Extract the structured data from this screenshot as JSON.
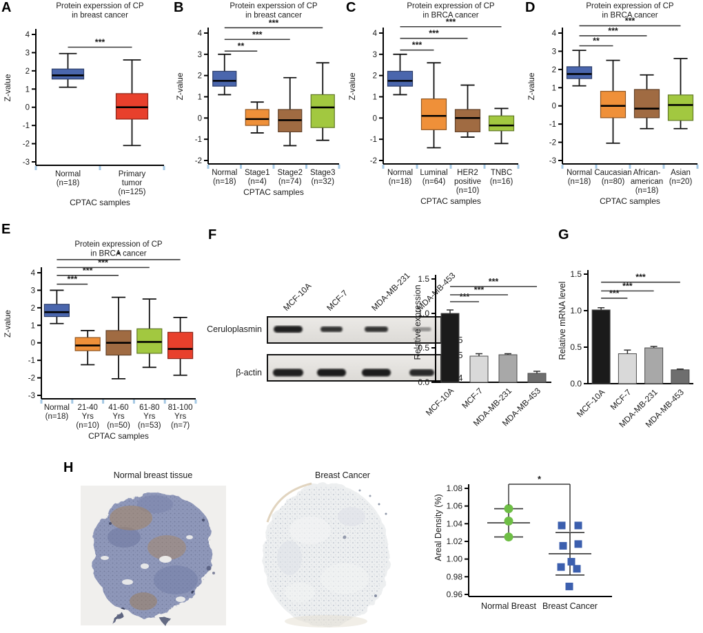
{
  "chart_data": [
    {
      "id": "A",
      "panel_letter": "A",
      "type": "box",
      "title_lines": [
        "Protein experssion of CP",
        "in breast cancer"
      ],
      "ylabel": "Z-value",
      "xlabel": "CPTAC samples",
      "ylim": [
        -3,
        4
      ],
      "ytick_step": 1,
      "groups": [
        {
          "label_lines": [
            "Normal",
            "(n=18)"
          ],
          "color": "#4a66ad",
          "low": 1.1,
          "q1": 1.55,
          "median": 1.75,
          "q3": 2.1,
          "high": 2.95
        },
        {
          "label_lines": [
            "Primary",
            "tumor",
            "(n=125)"
          ],
          "color": "#e8402c",
          "low": -2.1,
          "q1": -0.65,
          "median": 0.0,
          "q3": 0.75,
          "high": 2.6
        }
      ],
      "sig": [
        {
          "from": 0,
          "to": 1,
          "label": "***",
          "y": 3.3
        }
      ]
    },
    {
      "id": "B",
      "panel_letter": "B",
      "type": "box",
      "title_lines": [
        "Protein experssion of CP",
        "in breast cancer"
      ],
      "ylabel": "Z-value",
      "xlabel": "CPTAC samples",
      "ylim": [
        -2,
        4
      ],
      "ytick_step": 1,
      "groups": [
        {
          "label_lines": [
            "Normal",
            "(n=18)"
          ],
          "color": "#4a66ad",
          "low": 1.1,
          "q1": 1.5,
          "median": 1.75,
          "q3": 2.2,
          "high": 3.0
        },
        {
          "label_lines": [
            "Stage1",
            "(n=4)"
          ],
          "color": "#ef9039",
          "low": -0.7,
          "q1": -0.35,
          "median": -0.05,
          "q3": 0.4,
          "high": 0.75
        },
        {
          "label_lines": [
            "Stage2",
            "(n=74)"
          ],
          "color": "#a06b42",
          "low": -1.3,
          "q1": -0.65,
          "median": -0.1,
          "q3": 0.4,
          "high": 1.9
        },
        {
          "label_lines": [
            "Stage3",
            "(n=32)"
          ],
          "color": "#a2c840",
          "low": -1.05,
          "q1": -0.45,
          "median": 0.5,
          "q3": 1.1,
          "high": 2.6
        }
      ],
      "sig": [
        {
          "from": 0,
          "to": 1,
          "label": "**",
          "y": 3.15
        },
        {
          "from": 0,
          "to": 2,
          "label": "***",
          "y": 3.7
        },
        {
          "from": 0,
          "to": 3,
          "label": "***",
          "y": 4.25
        }
      ]
    },
    {
      "id": "C",
      "panel_letter": "C",
      "type": "box",
      "title_lines": [
        "Protein expression of CP",
        "in BRCA cancer"
      ],
      "ylabel": "Z-value",
      "xlabel": "CPTAC samples",
      "ylim": [
        -2,
        4
      ],
      "ytick_step": 1,
      "groups": [
        {
          "label_lines": [
            "Normal",
            "(n=18)"
          ],
          "color": "#4a66ad",
          "low": 1.1,
          "q1": 1.5,
          "median": 1.75,
          "q3": 2.2,
          "high": 3.0
        },
        {
          "label_lines": [
            "Luminal",
            "(n=64)"
          ],
          "color": "#ef9039",
          "low": -1.4,
          "q1": -0.55,
          "median": 0.1,
          "q3": 0.9,
          "high": 2.6
        },
        {
          "label_lines": [
            "HER2",
            "positive",
            "(n=10)"
          ],
          "color": "#a06b42",
          "low": -0.9,
          "q1": -0.65,
          "median": 0.0,
          "q3": 0.4,
          "high": 1.55
        },
        {
          "label_lines": [
            "TNBC",
            "(n=16)"
          ],
          "color": "#a2c840",
          "low": -1.2,
          "q1": -0.6,
          "median": -0.35,
          "q3": 0.1,
          "high": 0.45
        }
      ],
      "sig": [
        {
          "from": 0,
          "to": 1,
          "label": "***",
          "y": 3.2
        },
        {
          "from": 0,
          "to": 2,
          "label": "***",
          "y": 3.75
        },
        {
          "from": 0,
          "to": 3,
          "label": "***",
          "y": 4.3
        }
      ]
    },
    {
      "id": "D",
      "panel_letter": "D",
      "type": "box",
      "title_lines": [
        "Protein expression of CP",
        "in BRCA cancer"
      ],
      "ylabel": "Z-value",
      "xlabel": "CPTAC samples",
      "ylim": [
        -3,
        4
      ],
      "ytick_step": 1,
      "groups": [
        {
          "label_lines": [
            "Normal",
            "(n=18)"
          ],
          "color": "#4a66ad",
          "low": 1.1,
          "q1": 1.5,
          "median": 1.75,
          "q3": 2.15,
          "high": 3.05
        },
        {
          "label_lines": [
            "Caucasian",
            "(n=80)"
          ],
          "color": "#ef9039",
          "low": -2.05,
          "q1": -0.65,
          "median": 0.0,
          "q3": 0.8,
          "high": 2.5
        },
        {
          "label_lines": [
            "African-",
            "american",
            "(n=18)"
          ],
          "color": "#a06b42",
          "low": -1.25,
          "q1": -0.65,
          "median": -0.15,
          "q3": 0.9,
          "high": 1.7
        },
        {
          "label_lines": [
            "Asian",
            "(n=20)"
          ],
          "color": "#a2c840",
          "low": -1.25,
          "q1": -0.8,
          "median": 0.05,
          "q3": 0.6,
          "high": 2.6
        }
      ],
      "sig": [
        {
          "from": 0,
          "to": 1,
          "label": "**",
          "y": 3.3
        },
        {
          "from": 0,
          "to": 2,
          "label": "***",
          "y": 3.85
        },
        {
          "from": 0,
          "to": 3,
          "label": "***",
          "y": 4.4
        }
      ]
    },
    {
      "id": "E",
      "panel_letter": "E",
      "type": "box",
      "title_lines": [
        "Protein expression of CP",
        "in BRCA cancer"
      ],
      "ylabel": "Z-value",
      "xlabel": "CPTAC samples",
      "ylim": [
        -3,
        4
      ],
      "ytick_step": 1,
      "groups": [
        {
          "label_lines": [
            "Normal",
            "(n=18)"
          ],
          "color": "#4a66ad",
          "low": 1.1,
          "q1": 1.5,
          "median": 1.75,
          "q3": 2.2,
          "high": 3.0
        },
        {
          "label_lines": [
            "21-40",
            "Yrs",
            "(n=10)"
          ],
          "color": "#ef9039",
          "low": -1.25,
          "q1": -0.45,
          "median": -0.15,
          "q3": 0.3,
          "high": 0.7
        },
        {
          "label_lines": [
            "41-60",
            "Yrs",
            "(n=50)"
          ],
          "color": "#a06b42",
          "low": -2.05,
          "q1": -0.7,
          "median": 0.0,
          "q3": 0.7,
          "high": 2.6
        },
        {
          "label_lines": [
            "61-80",
            "Yrs",
            "(n=53)"
          ],
          "color": "#a2c840",
          "low": -1.4,
          "q1": -0.6,
          "median": 0.05,
          "q3": 0.8,
          "high": 2.5
        },
        {
          "label_lines": [
            "81-100",
            "Yrs",
            "(n=7)"
          ],
          "color": "#e8402c",
          "low": -1.85,
          "q1": -0.9,
          "median": -0.35,
          "q3": 0.6,
          "high": 1.45
        }
      ],
      "sig": [
        {
          "from": 0,
          "to": 1,
          "label": "***",
          "y": 3.35
        },
        {
          "from": 0,
          "to": 2,
          "label": "***",
          "y": 3.85
        },
        {
          "from": 0,
          "to": 3,
          "label": "***",
          "y": 4.3
        },
        {
          "from": 0,
          "to": 4,
          "label": "*",
          "y": 4.75
        }
      ]
    },
    {
      "id": "F",
      "panel_letter": "",
      "type": "bar",
      "ylabel": "Relative expression",
      "ylim": [
        0,
        1.5
      ],
      "yticks": [
        0,
        0.5,
        1.0,
        1.5
      ],
      "categories": [
        "MCF-10A",
        "MCF-7",
        "MDA-MB-231",
        "MDA-MB-453"
      ],
      "values": [
        1.0,
        0.38,
        0.4,
        0.13
      ],
      "errors": [
        0.05,
        0.035,
        0.015,
        0.03
      ],
      "bar_colors": [
        "#1b1b1b",
        "#d9d9d9",
        "#a8a8a8",
        "#6e6e6e"
      ],
      "sig": [
        {
          "from": 0,
          "to": 1,
          "label": "***",
          "y": 1.17
        },
        {
          "from": 0,
          "to": 2,
          "label": "***",
          "y": 1.27
        },
        {
          "from": 0,
          "to": 3,
          "label": "***",
          "y": 1.39
        }
      ]
    },
    {
      "id": "G",
      "panel_letter": "G",
      "type": "bar",
      "ylabel": "Relative mRNA level",
      "ylim": [
        0,
        1.5
      ],
      "yticks": [
        0,
        0.5,
        1.0,
        1.5
      ],
      "categories": [
        "MCF-10A",
        "MCF-7",
        "MDA-MB-231",
        "MDA-MB-453"
      ],
      "values": [
        1.01,
        0.41,
        0.49,
        0.19
      ],
      "errors": [
        0.03,
        0.05,
        0.02,
        0.01
      ],
      "bar_colors": [
        "#1b1b1b",
        "#d9d9d9",
        "#a8a8a8",
        "#6e6e6e"
      ],
      "sig": [
        {
          "from": 0,
          "to": 1,
          "label": "***",
          "y": 1.17
        },
        {
          "from": 0,
          "to": 2,
          "label": "***",
          "y": 1.27
        },
        {
          "from": 0,
          "to": 3,
          "label": "***",
          "y": 1.39
        }
      ]
    },
    {
      "id": "H",
      "panel_letter": "",
      "type": "scatter",
      "ylabel": "Areal Density (%)",
      "ylim": [
        0.96,
        1.08
      ],
      "ytick_step": 0.02,
      "groups": [
        {
          "label": "Normal Breast",
          "color": "#6ebe45",
          "marker": "circle",
          "mean": 1.041,
          "sd": [
            1.025,
            1.057
          ],
          "points": [
            {
              "v": 1.057,
              "dx": 0
            },
            {
              "v": 1.043,
              "dx": 0
            },
            {
              "v": 1.025,
              "dx": 0
            }
          ]
        },
        {
          "label": "Breast Cancer",
          "color": "#3c5fae",
          "marker": "square",
          "mean": 1.006,
          "sd": [
            0.982,
            1.03
          ],
          "points": [
            {
              "v": 1.038,
              "dx": -12
            },
            {
              "v": 1.038,
              "dx": 12
            },
            {
              "v": 1.015,
              "dx": -10
            },
            {
              "v": 1.017,
              "dx": 12
            },
            {
              "v": 0.997,
              "dx": 2
            },
            {
              "v": 0.991,
              "dx": -13
            },
            {
              "v": 0.989,
              "dx": 10
            },
            {
              "v": 0.969,
              "dx": -1
            }
          ]
        }
      ],
      "sig": [
        {
          "from": 0,
          "to": 1,
          "label": "*"
        }
      ]
    }
  ],
  "blot": {
    "panel_letter": "F",
    "lanes": [
      "MCF-10A",
      "MCF-7",
      "MDA-MB-231",
      "MDA-MB-453"
    ],
    "rows": [
      {
        "label": "Ceruloplasmin",
        "marker_bottom": "95",
        "bands": [
          {
            "w": 42,
            "h": 10,
            "opacity": 0.95
          },
          {
            "w": 32,
            "h": 8,
            "opacity": 0.85
          },
          {
            "w": 34,
            "h": 8,
            "opacity": 0.85
          },
          {
            "w": 27,
            "h": 6,
            "opacity": 0.4
          }
        ]
      },
      {
        "label": "β-actin",
        "marker_top": "55",
        "marker_bottom": "34",
        "bands": [
          {
            "w": 44,
            "h": 11,
            "opacity": 0.95
          },
          {
            "w": 42,
            "h": 11,
            "opacity": 0.97
          },
          {
            "w": 42,
            "h": 11,
            "opacity": 0.97
          },
          {
            "w": 36,
            "h": 10,
            "opacity": 0.9
          }
        ]
      }
    ]
  },
  "histology": {
    "panel_letter": "H",
    "images": [
      {
        "title": "Normal breast tissue"
      },
      {
        "title": "Breast Cancer"
      }
    ]
  }
}
